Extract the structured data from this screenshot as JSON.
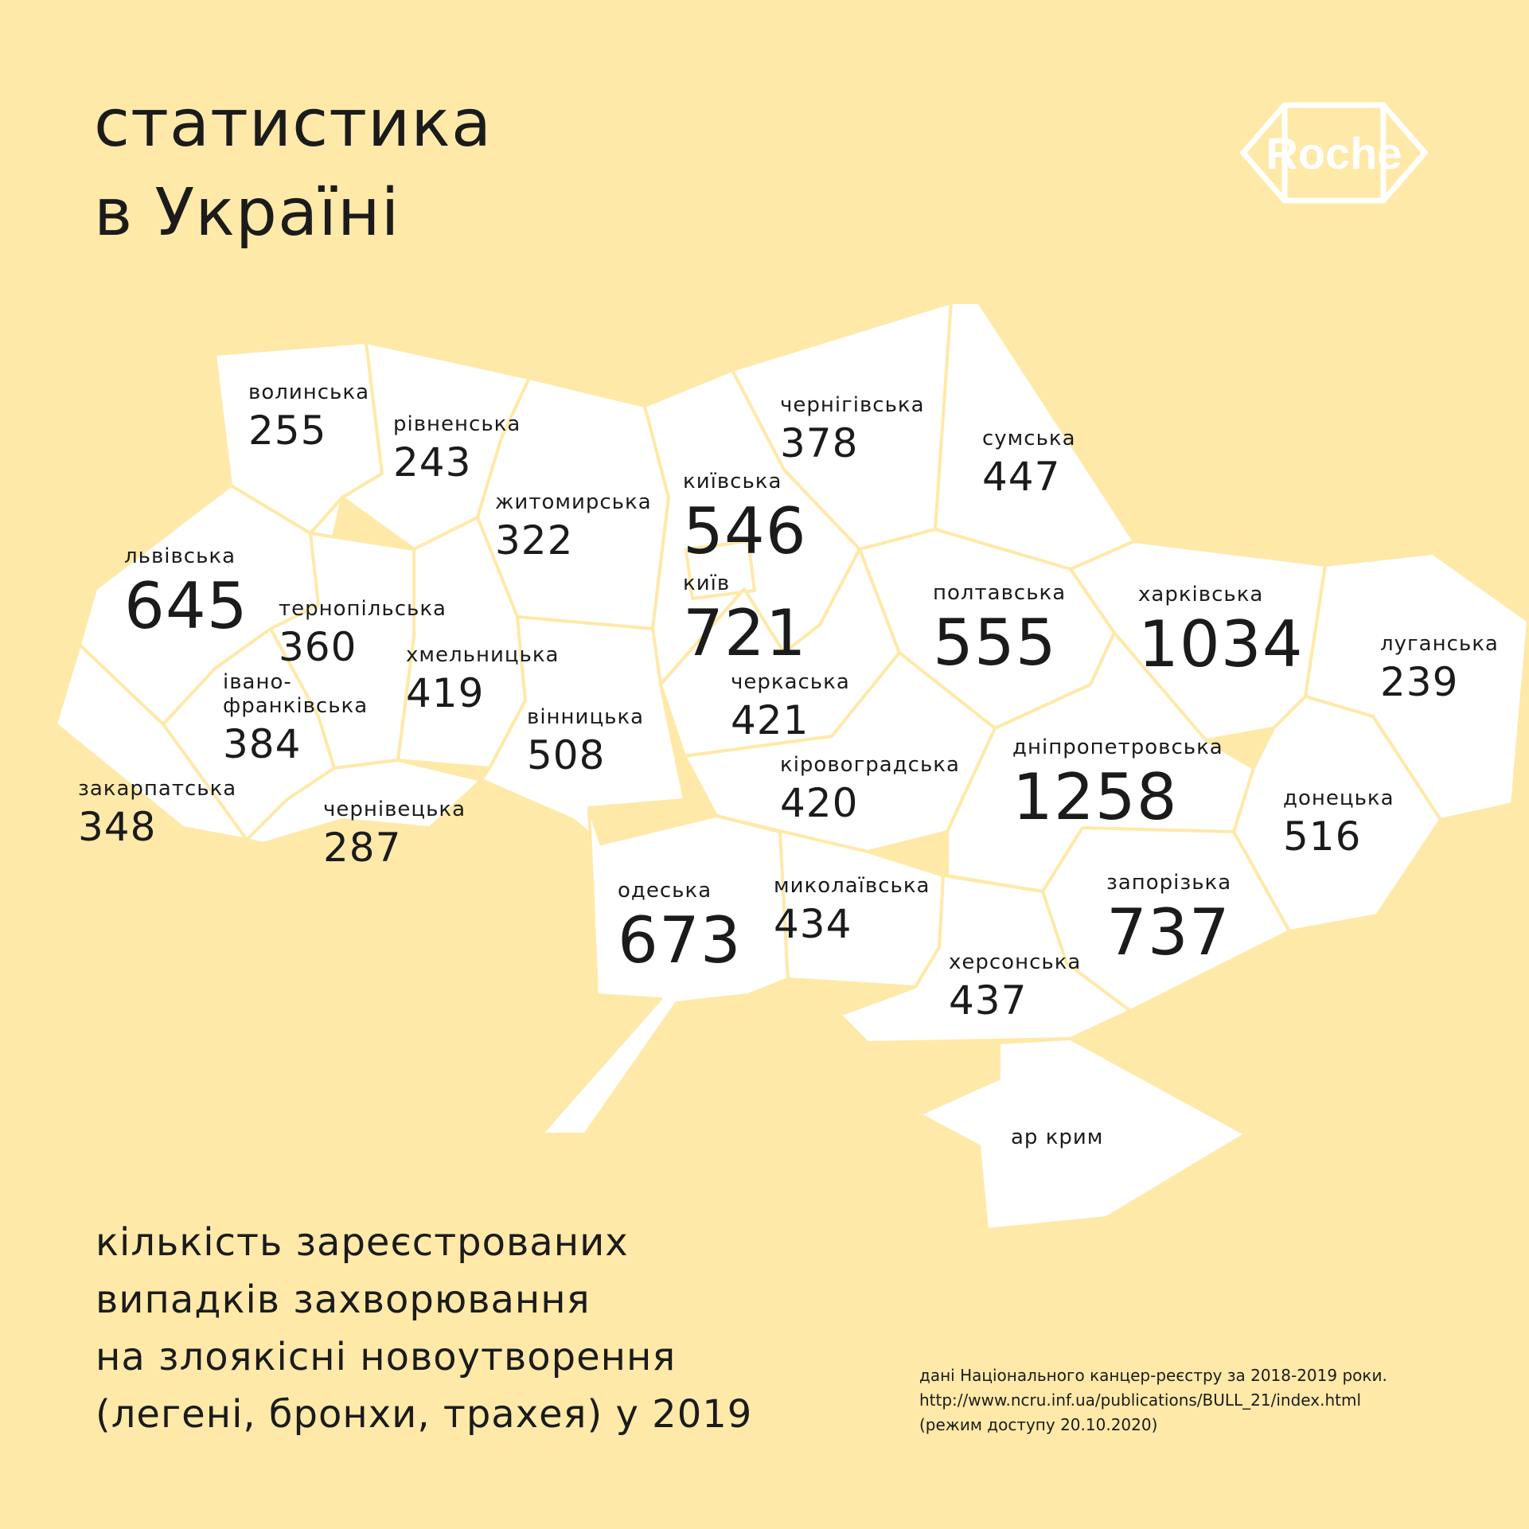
{
  "title": [
    "статистика",
    "в Україні"
  ],
  "logo_text": "Roche",
  "regions": [
    {
      "id": "volynska",
      "name": "волинська",
      "value": 255
    },
    {
      "id": "rivnenska",
      "name": "рівненська",
      "value": 243
    },
    {
      "id": "zhytomyrska",
      "name": "житомирська",
      "value": 322
    },
    {
      "id": "kyivska",
      "name": "київська",
      "value": 546
    },
    {
      "id": "kyiv",
      "name": "київ",
      "value": 721
    },
    {
      "id": "chernihivska",
      "name": "чернігівська",
      "value": 378
    },
    {
      "id": "sumska",
      "name": "сумська",
      "value": 447
    },
    {
      "id": "lvivska",
      "name": "львівська",
      "value": 645
    },
    {
      "id": "ternopilska",
      "name": "тернопільська",
      "value": 360
    },
    {
      "id": "khmelnytska",
      "name": "хмельницька",
      "value": 419
    },
    {
      "id": "ivano-frankivska",
      "name": "івано-\nфранківська",
      "value": 384
    },
    {
      "id": "vinnytska",
      "name": "вінницька",
      "value": 508
    },
    {
      "id": "zakarpatska",
      "name": "закарпатська",
      "value": 348
    },
    {
      "id": "chernivetska",
      "name": "чернівецька",
      "value": 287
    },
    {
      "id": "cherkaska",
      "name": "черкаська",
      "value": 421
    },
    {
      "id": "poltavska",
      "name": "полтавська",
      "value": 555
    },
    {
      "id": "kharkivska",
      "name": "харківська",
      "value": 1034
    },
    {
      "id": "luhanska",
      "name": "луганська",
      "value": 239
    },
    {
      "id": "kirovohradska",
      "name": "кіровоградська",
      "value": 420
    },
    {
      "id": "dnipropetrovska",
      "name": "дніпропетровська",
      "value": 1258
    },
    {
      "id": "donetska",
      "name": "донецька",
      "value": 516
    },
    {
      "id": "odeska",
      "name": "одеська",
      "value": 673
    },
    {
      "id": "mykolaivska",
      "name": "миколаївська",
      "value": 434
    },
    {
      "id": "zaporizka",
      "name": "запорізька",
      "value": 737
    },
    {
      "id": "khersonska",
      "name": "херсонська",
      "value": 437
    },
    {
      "id": "crimea",
      "name": "ар крим",
      "value": null
    }
  ],
  "subtitle": [
    "кількість зареєстрованих",
    "випадків захворювання",
    "на злоякісні новоутворення",
    "(легені, бронхи, трахея) у 2019"
  ],
  "source": [
    "дані Національного канцер-реєстру за 2018-2019 роки.",
    "http://www.ncru.inf.ua/publications/BULL_21/index.html",
    "(режим доступу 20.10.2020)"
  ],
  "colors": {
    "background": "#FFE9A9",
    "region_fill": "#FFFFFF",
    "border": "#FFE9A9",
    "text": "#1b1b1b"
  }
}
